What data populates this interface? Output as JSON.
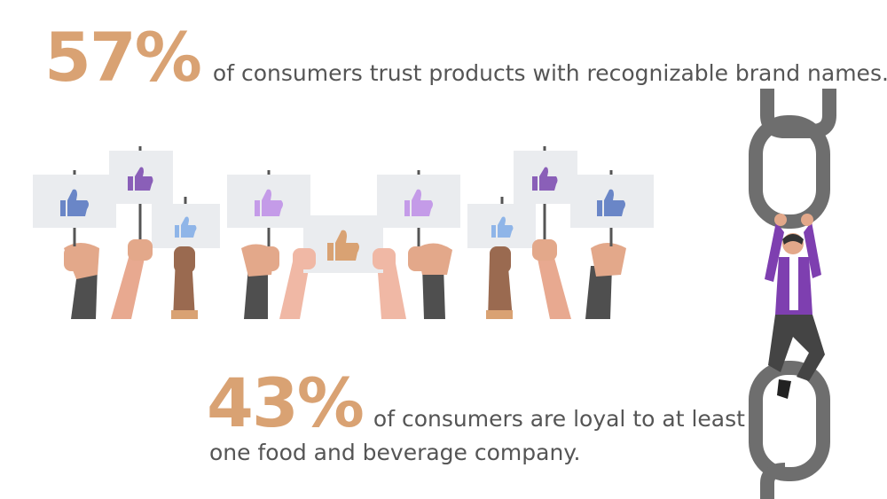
{
  "stat1": {
    "percent": "57%",
    "text": "of consumers trust products with recognizable brand names."
  },
  "stat2": {
    "percent": "43%",
    "text_line1": "of consumers are loyal to at least",
    "text_line2": "one food and beverage company."
  },
  "colors": {
    "accent": "#d9a273",
    "text": "#555555",
    "thumb_blue": "#6a86c7",
    "thumb_light_blue": "#8fb5e8",
    "thumb_purple": "#8a5fb8",
    "thumb_lavender": "#c49be8",
    "thumb_orange": "#d9a273",
    "chain": "#6e6e6e",
    "shirt": "#7e3fb0"
  },
  "illustrations": {
    "crowd": "hands-holding-thumbs-up-signs",
    "chain": "person-holding-chain-links"
  }
}
